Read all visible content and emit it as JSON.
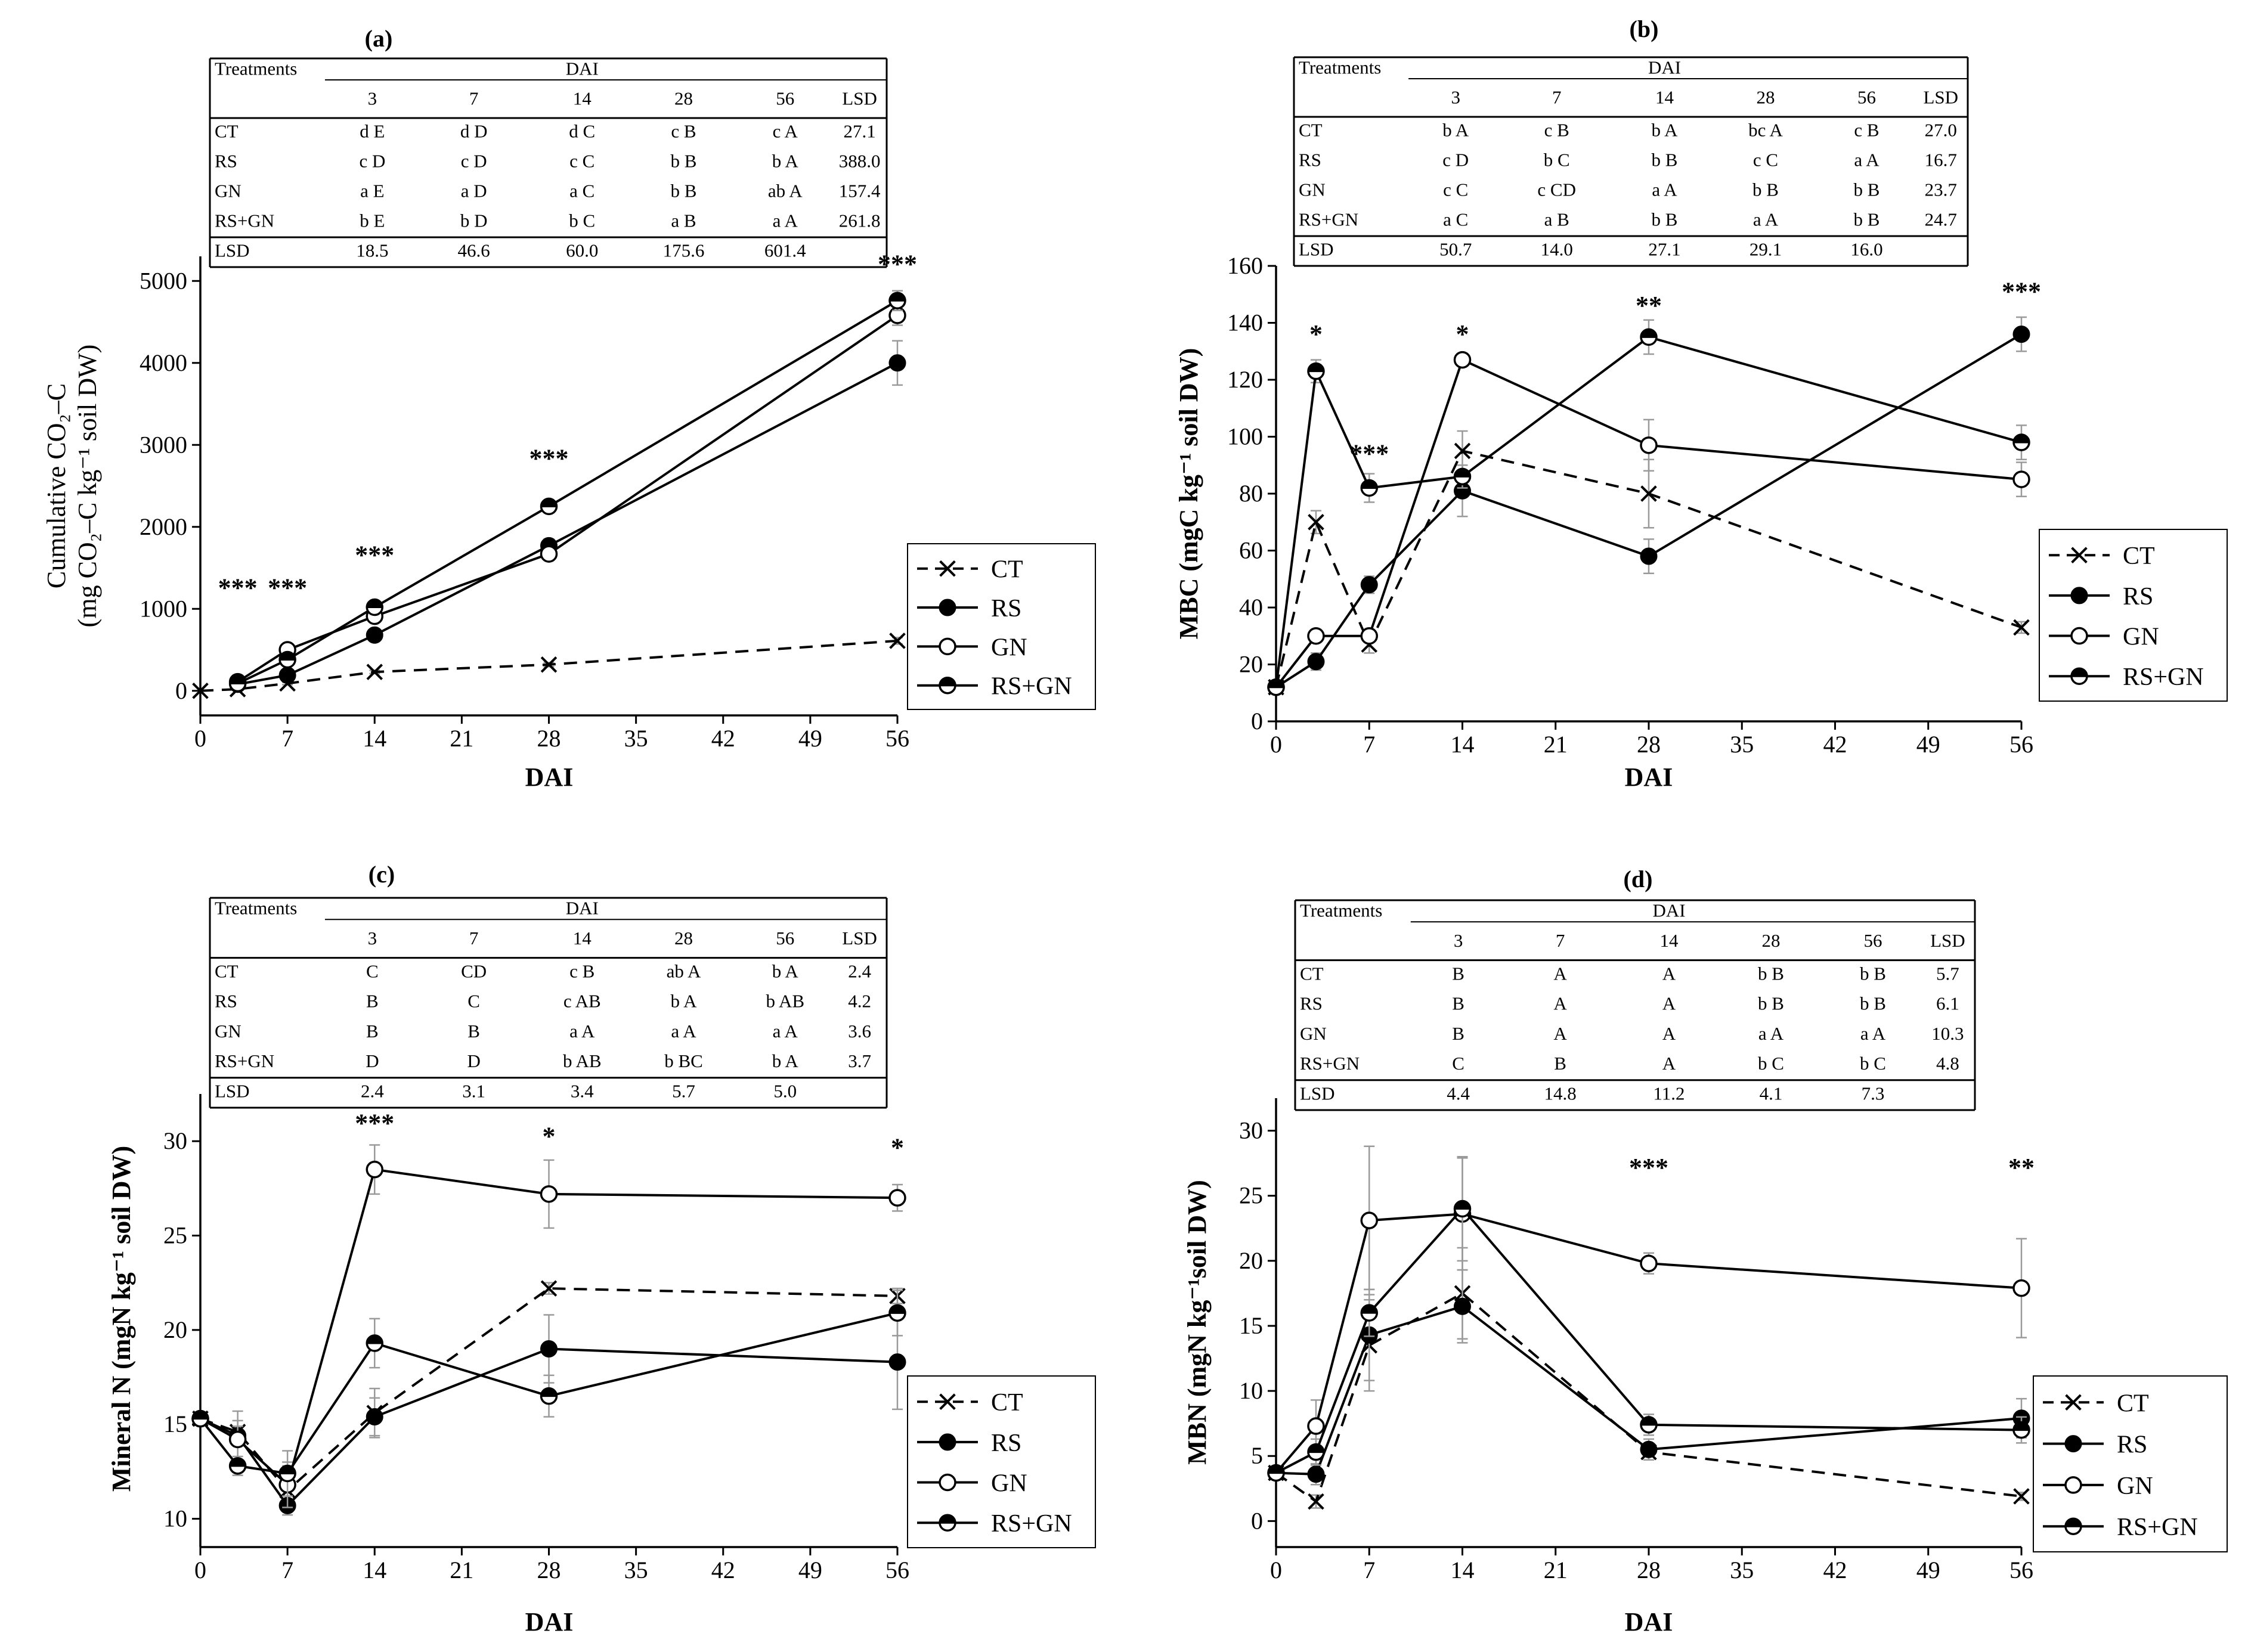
{
  "chart_data": [
    {
      "type": "line",
      "panel_label": "(a)",
      "xlabel": "DAI",
      "ylabel_line1": "Cumulative CO₂–C",
      "ylabel_line2": "(mg CO₂–C kg⁻¹ soil DW)",
      "xlim": [
        0,
        56
      ],
      "ylim": [
        -300,
        5300
      ],
      "xticks": [
        0,
        7,
        14,
        21,
        28,
        35,
        42,
        49,
        56
      ],
      "yticks": [
        0,
        1000,
        2000,
        3000,
        4000,
        5000
      ],
      "series": [
        {
          "name": "CT",
          "style": "dashed-x",
          "x": [
            0,
            3,
            7,
            14,
            28,
            56
          ],
          "values": [
            0,
            20,
            90,
            230,
            320,
            610
          ],
          "err": [
            0,
            10,
            15,
            20,
            25,
            40
          ]
        },
        {
          "name": "RS",
          "style": "filled",
          "x": [
            3,
            7,
            14,
            28,
            56
          ],
          "values": [
            80,
            190,
            680,
            1770,
            4000
          ],
          "err": [
            20,
            30,
            50,
            80,
            270
          ]
        },
        {
          "name": "GN",
          "style": "open",
          "x": [
            3,
            7,
            14,
            28,
            56
          ],
          "values": [
            110,
            500,
            910,
            1670,
            4580
          ],
          "err": [
            20,
            30,
            50,
            60,
            120
          ]
        },
        {
          "name": "RS+GN",
          "style": "half",
          "x": [
            3,
            7,
            14,
            28,
            56
          ],
          "values": [
            90,
            380,
            1020,
            2250,
            4760
          ],
          "err": [
            20,
            30,
            50,
            60,
            120
          ]
        }
      ],
      "significance": [
        {
          "x": 3,
          "y": 1150,
          "text": "***"
        },
        {
          "x": 7,
          "y": 1150,
          "text": "***"
        },
        {
          "x": 14,
          "y": 1550,
          "text": "***"
        },
        {
          "x": 28,
          "y": 2730,
          "text": "***"
        },
        {
          "x": 56,
          "y": 5100,
          "text": "***"
        }
      ],
      "table": {
        "header": "Treatments",
        "dai_label": "DAI",
        "columns": [
          "3",
          "7",
          "14",
          "28",
          "56",
          "LSD"
        ],
        "rows": [
          {
            "name": "CT",
            "cells": [
              "d E",
              "d D",
              "d C",
              "c B",
              "c A",
              "27.1"
            ]
          },
          {
            "name": "RS",
            "cells": [
              "c D",
              "c D",
              "c C",
              "b B",
              "b A",
              "388.0"
            ]
          },
          {
            "name": "GN",
            "cells": [
              "a E",
              "a D",
              "a C",
              "b B",
              "ab A",
              "157.4"
            ]
          },
          {
            "name": "RS+GN",
            "cells": [
              "b E",
              "b D",
              "b C",
              "a B",
              "a A",
              "261.8"
            ]
          }
        ],
        "lsd_row": {
          "name": "LSD",
          "cells": [
            "18.5",
            "46.6",
            "60.0",
            "175.6",
            "601.4",
            ""
          ]
        }
      },
      "legend": [
        "CT",
        "RS",
        "GN",
        "RS+GN"
      ]
    },
    {
      "type": "line",
      "panel_label": "(b)",
      "xlabel": "DAI",
      "ylabel_line1": "MBC  (mgC kg⁻¹ soil DW)",
      "ylabel_line2": "",
      "xlim": [
        0,
        56
      ],
      "ylim": [
        0,
        160
      ],
      "xticks": [
        0,
        7,
        14,
        21,
        28,
        35,
        42,
        49,
        56
      ],
      "yticks": [
        0,
        20,
        40,
        60,
        80,
        100,
        120,
        140,
        160
      ],
      "series": [
        {
          "name": "CT",
          "style": "dashed-x",
          "x": [
            0,
            3,
            7,
            14,
            28,
            56
          ],
          "values": [
            12,
            70,
            27,
            95,
            80,
            33
          ],
          "err": [
            2,
            4,
            3,
            7,
            12,
            2
          ]
        },
        {
          "name": "RS",
          "style": "filled",
          "x": [
            0,
            3,
            7,
            14,
            28,
            56
          ],
          "values": [
            12,
            21,
            48,
            81,
            58,
            136
          ],
          "err": [
            2,
            3,
            3,
            9,
            6,
            6
          ]
        },
        {
          "name": "GN",
          "style": "open",
          "x": [
            0,
            3,
            7,
            14,
            28,
            56
          ],
          "values": [
            12,
            30,
            30,
            127,
            97,
            85
          ],
          "err": [
            2,
            2,
            2,
            2,
            9,
            6
          ]
        },
        {
          "name": "RS+GN",
          "style": "half",
          "x": [
            0,
            3,
            7,
            14,
            28,
            56
          ],
          "values": [
            12,
            123,
            82,
            86,
            135,
            98
          ],
          "err": [
            2,
            4,
            5,
            4,
            6,
            6
          ]
        }
      ],
      "significance": [
        {
          "x": 3,
          "y": 133,
          "text": "*"
        },
        {
          "x": 7,
          "y": 91,
          "text": "***"
        },
        {
          "x": 14,
          "y": 133,
          "text": "*"
        },
        {
          "x": 28,
          "y": 143,
          "text": "**"
        },
        {
          "x": 56,
          "y": 148,
          "text": "***"
        }
      ],
      "table": {
        "header": "Treatments",
        "dai_label": "DAI",
        "columns": [
          "3",
          "7",
          "14",
          "28",
          "56",
          "LSD"
        ],
        "rows": [
          {
            "name": "CT",
            "cells": [
              "b A",
              "c B",
              "b A",
              "bc A",
              "c B",
              "27.0"
            ]
          },
          {
            "name": "RS",
            "cells": [
              "c D",
              "b C",
              "b B",
              "c C",
              "a A",
              "16.7"
            ]
          },
          {
            "name": "GN",
            "cells": [
              "c C",
              "c CD",
              "a A",
              "b B",
              "b B",
              "23.7"
            ]
          },
          {
            "name": "RS+GN",
            "cells": [
              "a C",
              "a B",
              "b B",
              "a A",
              "b B",
              "24.7"
            ]
          }
        ],
        "lsd_row": {
          "name": "LSD",
          "cells": [
            "50.7",
            "14.0",
            "27.1",
            "29.1",
            "16.0",
            ""
          ]
        }
      },
      "legend": [
        "CT",
        "RS",
        "GN",
        "RS+GN"
      ]
    },
    {
      "type": "line",
      "panel_label": "(c)",
      "xlabel": "DAI",
      "ylabel_line1": "Mineral N  (mgN kg⁻¹ soil DW)",
      "ylabel_line2": "",
      "xlim": [
        0,
        56
      ],
      "ylim": [
        8.5,
        32.5
      ],
      "xticks": [
        0,
        7,
        14,
        21,
        28,
        35,
        42,
        49,
        56
      ],
      "yticks": [
        10,
        15,
        20,
        25,
        30
      ],
      "series": [
        {
          "name": "CT",
          "style": "dashed-x",
          "x": [
            0,
            3,
            7,
            14,
            28,
            56
          ],
          "values": [
            15.3,
            14.6,
            11.5,
            15.6,
            22.2,
            21.8
          ],
          "err": [
            0.3,
            0.6,
            1.3,
            1.3,
            0.3,
            0.4
          ]
        },
        {
          "name": "RS",
          "style": "filled",
          "x": [
            0,
            3,
            7,
            14,
            28,
            56
          ],
          "values": [
            15.3,
            14.4,
            10.7,
            15.4,
            19.0,
            18.3
          ],
          "err": [
            0.3,
            0.5,
            0.3,
            1.0,
            1.8,
            2.5
          ]
        },
        {
          "name": "GN",
          "style": "open",
          "x": [
            0,
            3,
            7,
            14,
            28,
            56
          ],
          "values": [
            15.3,
            14.2,
            11.8,
            28.5,
            27.2,
            27.0
          ],
          "err": [
            0.3,
            1.5,
            1.2,
            1.3,
            1.8,
            0.7
          ]
        },
        {
          "name": "RS+GN",
          "style": "half",
          "x": [
            0,
            3,
            7,
            14,
            28,
            56
          ],
          "values": [
            15.3,
            12.8,
            12.4,
            19.3,
            16.5,
            20.9
          ],
          "err": [
            0.3,
            0.5,
            1.2,
            1.3,
            1.1,
            1.2
          ]
        }
      ],
      "significance": [
        {
          "x": 14,
          "y": 30.5,
          "text": "***"
        },
        {
          "x": 28,
          "y": 29.8,
          "text": "*"
        },
        {
          "x": 56,
          "y": 29.2,
          "text": "*"
        }
      ],
      "table": {
        "header": "Treatments",
        "dai_label": "DAI",
        "columns": [
          "3",
          "7",
          "14",
          "28",
          "56",
          "LSD"
        ],
        "rows": [
          {
            "name": "CT",
            "cells": [
              "C",
              "CD",
              "c B",
              "ab A",
              "b A",
              "2.4"
            ]
          },
          {
            "name": "RS",
            "cells": [
              "B",
              "C",
              "c AB",
              "b A",
              "b AB",
              "4.2"
            ]
          },
          {
            "name": "GN",
            "cells": [
              "B",
              "B",
              "a A",
              "a A",
              "a A",
              "3.6"
            ]
          },
          {
            "name": "RS+GN",
            "cells": [
              "D",
              "D",
              "b AB",
              "b BC",
              "b A",
              "3.7"
            ]
          }
        ],
        "lsd_row": {
          "name": "LSD",
          "cells": [
            "2.4",
            "3.1",
            "3.4",
            "5.7",
            "5.0",
            ""
          ]
        }
      },
      "legend": [
        "CT",
        "RS",
        "GN",
        "RS+GN"
      ]
    },
    {
      "type": "line",
      "panel_label": "(d)",
      "xlabel": "DAI",
      "ylabel_line1": "MBN  (mgN kg⁻¹soil DW)",
      "ylabel_line2": "",
      "xlim": [
        0,
        56
      ],
      "ylim": [
        -2,
        32.5
      ],
      "xticks": [
        0,
        7,
        14,
        21,
        28,
        35,
        42,
        49,
        56
      ],
      "yticks": [
        0,
        5,
        10,
        15,
        20,
        25,
        30
      ],
      "series": [
        {
          "name": "CT",
          "style": "dashed-x",
          "x": [
            0,
            3,
            7,
            14,
            28,
            56
          ],
          "values": [
            3.7,
            1.5,
            13.5,
            17.5,
            5.3,
            1.9
          ],
          "err": [
            0.3,
            0.5,
            3.5,
            3.5,
            0.6,
            0.3
          ]
        },
        {
          "name": "RS",
          "style": "filled",
          "x": [
            0,
            3,
            7,
            14,
            28,
            56
          ],
          "values": [
            3.7,
            3.6,
            14.3,
            16.5,
            5.5,
            7.9
          ],
          "err": [
            0.3,
            0.8,
            3.5,
            2.8,
            0.8,
            1.5
          ]
        },
        {
          "name": "GN",
          "style": "open",
          "x": [
            0,
            3,
            7,
            14,
            28,
            56
          ],
          "values": [
            3.7,
            7.3,
            23.1,
            23.6,
            19.8,
            17.9
          ],
          "err": [
            0.3,
            2.0,
            5.7,
            4.3,
            0.8,
            3.8
          ]
        },
        {
          "name": "RS+GN",
          "style": "half",
          "x": [
            0,
            3,
            7,
            14,
            28,
            56
          ],
          "values": [
            3.7,
            5.3,
            16.0,
            24.0,
            7.4,
            7.0
          ],
          "err": [
            0.3,
            1.0,
            1.8,
            4.0,
            0.8,
            1.0
          ]
        }
      ],
      "significance": [
        {
          "x": 28,
          "y": 26.5,
          "text": "***"
        },
        {
          "x": 56,
          "y": 26.5,
          "text": "**"
        }
      ],
      "table": {
        "header": "Treatments",
        "dai_label": "DAI",
        "columns": [
          "3",
          "7",
          "14",
          "28",
          "56",
          "LSD"
        ],
        "rows": [
          {
            "name": "CT",
            "cells": [
              "B",
              "A",
              "A",
              "b B",
              "b B",
              "5.7"
            ]
          },
          {
            "name": "RS",
            "cells": [
              "B",
              "A",
              "A",
              "b B",
              "b B",
              "6.1"
            ]
          },
          {
            "name": "GN",
            "cells": [
              "B",
              "A",
              "A",
              "a A",
              "a A",
              "10.3"
            ]
          },
          {
            "name": "RS+GN",
            "cells": [
              "C",
              "B",
              "A",
              "b C",
              "b C",
              "4.8"
            ]
          }
        ],
        "lsd_row": {
          "name": "LSD",
          "cells": [
            "4.4",
            "14.8",
            "11.2",
            "4.1",
            "7.3",
            ""
          ]
        }
      },
      "legend": [
        "CT",
        "RS",
        "GN",
        "RS+GN"
      ]
    }
  ]
}
